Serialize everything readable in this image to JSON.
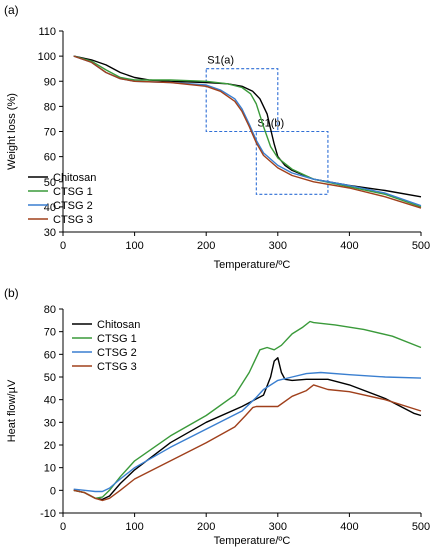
{
  "chart_data": [
    {
      "type": "line",
      "panel_label": "(a)",
      "title": "",
      "xlabel": "Temperature/ºC",
      "ylabel": "Weight loss (%)",
      "xlim": [
        0,
        500
      ],
      "ylim": [
        30,
        110
      ],
      "xticks": [
        0,
        100,
        200,
        300,
        400,
        500
      ],
      "yticks": [
        30,
        40,
        50,
        60,
        70,
        80,
        90,
        100,
        110
      ],
      "grid": false,
      "legend": "lower-left",
      "series": [
        {
          "name": "Chitosan",
          "color": "#000000",
          "x": [
            15,
            40,
            60,
            80,
            100,
            120,
            150,
            200,
            230,
            250,
            265,
            275,
            285,
            290,
            295,
            300,
            310,
            320,
            350,
            400,
            450,
            500
          ],
          "y": [
            100,
            98.5,
            96.5,
            93.5,
            91.5,
            90.5,
            90,
            89.5,
            89,
            88,
            86,
            83,
            77,
            71,
            65,
            60,
            56.5,
            54.5,
            51,
            48.5,
            46.5,
            44
          ]
        },
        {
          "name": "CTSG 1",
          "color": "#3a9a3a",
          "x": [
            15,
            40,
            60,
            80,
            100,
            150,
            200,
            230,
            250,
            262,
            270,
            280,
            290,
            300,
            320,
            350,
            400,
            450,
            500
          ],
          "y": [
            100,
            98,
            94.5,
            91.5,
            90.5,
            90.5,
            90,
            89,
            87.5,
            85,
            81,
            72,
            64,
            59.5,
            55,
            51,
            48,
            45,
            40
          ]
        },
        {
          "name": "CTSG 2",
          "color": "#3a7fd0",
          "x": [
            15,
            40,
            60,
            80,
            100,
            150,
            200,
            220,
            240,
            250,
            260,
            270,
            280,
            300,
            320,
            350,
            400,
            450,
            500
          ],
          "y": [
            100,
            97.5,
            93.5,
            91,
            90,
            89.5,
            88.5,
            86.5,
            83,
            79,
            73,
            66.5,
            61.5,
            56.5,
            53.5,
            51,
            48.5,
            45.5,
            40.5
          ]
        },
        {
          "name": "CTSG 3",
          "color": "#a0401c",
          "x": [
            15,
            40,
            60,
            80,
            100,
            150,
            200,
            220,
            240,
            250,
            260,
            270,
            280,
            300,
            320,
            350,
            400,
            450,
            500
          ],
          "y": [
            100,
            97.5,
            93.5,
            91,
            90,
            89.5,
            88,
            86,
            82,
            78,
            72,
            65.5,
            60.5,
            55.5,
            52.5,
            50,
            47.5,
            44,
            39.5
          ]
        }
      ],
      "annotations": [
        {
          "label": "S1(a)",
          "box_x": [
            200,
            300
          ],
          "box_y": [
            70,
            95
          ]
        },
        {
          "label": "S1(b)",
          "box_x": [
            270,
            370
          ],
          "box_y": [
            45,
            70
          ]
        }
      ]
    },
    {
      "type": "line",
      "panel_label": "(b)",
      "title": "",
      "xlabel": "Temperature/ºC",
      "ylabel": "Heat flow/µV",
      "xlim": [
        0,
        500
      ],
      "ylim": [
        -10,
        80
      ],
      "xticks": [
        0,
        100,
        200,
        300,
        400,
        500
      ],
      "yticks": [
        -10,
        0,
        10,
        20,
        30,
        40,
        50,
        60,
        70,
        80
      ],
      "grid": false,
      "legend": "upper-left",
      "series": [
        {
          "name": "Chitosan",
          "color": "#000000",
          "x": [
            15,
            30,
            45,
            55,
            65,
            80,
            100,
            150,
            200,
            250,
            280,
            290,
            295,
            300,
            305,
            310,
            320,
            340,
            370,
            400,
            450,
            490,
            500
          ],
          "y": [
            0,
            -1,
            -3.5,
            -4,
            -2.5,
            3,
            9,
            21,
            30,
            37,
            42,
            50,
            57,
            58.5,
            52,
            49,
            48.5,
            49,
            49,
            46.5,
            40.5,
            34,
            33
          ]
        },
        {
          "name": "CTSG 1",
          "color": "#3a9a3a",
          "x": [
            15,
            30,
            45,
            55,
            65,
            80,
            100,
            150,
            200,
            240,
            260,
            275,
            285,
            295,
            305,
            320,
            335,
            345,
            350,
            380,
            420,
            460,
            500
          ],
          "y": [
            0,
            -1,
            -3.5,
            -3,
            0,
            6,
            13,
            24,
            33,
            42,
            52,
            62,
            63,
            62,
            64,
            69,
            72,
            74.5,
            74,
            73,
            71,
            68,
            63
          ]
        },
        {
          "name": "CTSG 2",
          "color": "#3a7fd0",
          "x": [
            15,
            30,
            45,
            55,
            65,
            80,
            100,
            150,
            200,
            250,
            270,
            280,
            300,
            320,
            340,
            360,
            400,
            450,
            500
          ],
          "y": [
            0.5,
            0,
            -0.5,
            -0.5,
            1,
            5,
            10,
            19,
            27,
            35,
            41,
            44.5,
            48.5,
            50,
            51.5,
            52,
            51,
            50,
            49.5
          ]
        },
        {
          "name": "CTSG 3",
          "color": "#a0401c",
          "x": [
            15,
            30,
            45,
            55,
            65,
            80,
            100,
            150,
            200,
            240,
            255,
            265,
            270,
            280,
            300,
            320,
            340,
            350,
            370,
            400,
            450,
            500
          ],
          "y": [
            0,
            -1,
            -3.5,
            -4.5,
            -3.5,
            0,
            5,
            13,
            21,
            28,
            33,
            36.5,
            37,
            37,
            37,
            41.5,
            44,
            46.5,
            44.5,
            43.5,
            40,
            35
          ]
        }
      ]
    }
  ]
}
